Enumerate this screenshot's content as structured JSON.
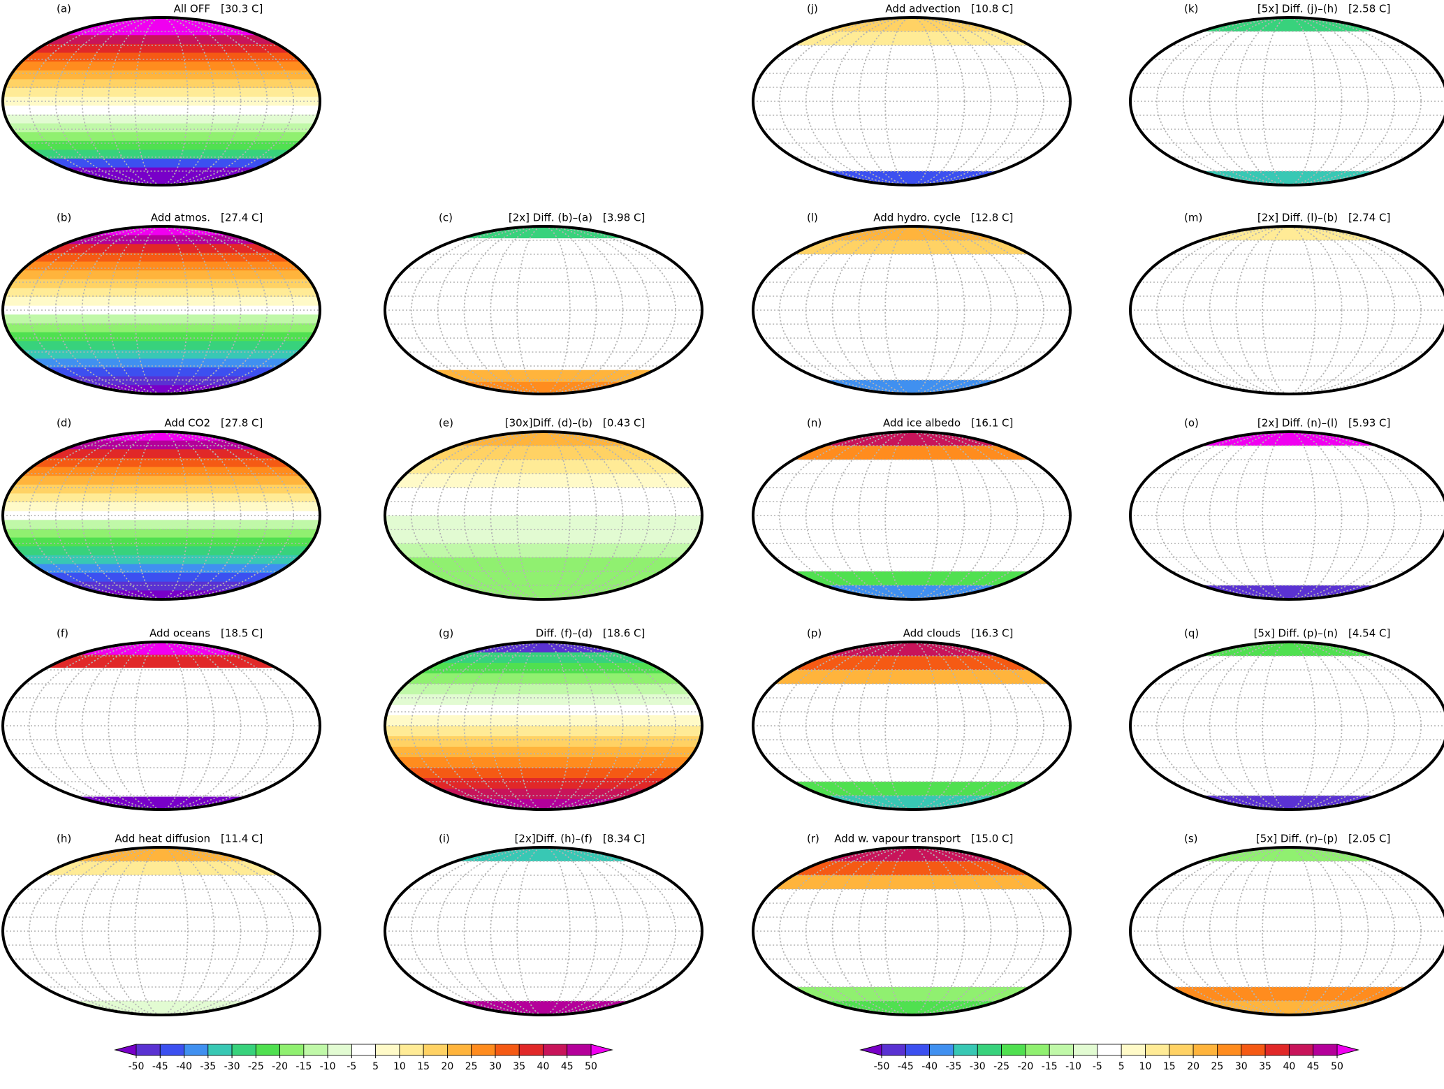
{
  "panels": [
    {
      "label": "(a)",
      "title": "All OFF",
      "mean": "[30.3 C]"
    },
    {
      "label": "(b)",
      "title": "Add atmos.",
      "mean": "[27.4 C]"
    },
    {
      "label": "(c)",
      "title": "[2x] Diff. (b)–(a)",
      "mean": "[3.98 C]"
    },
    {
      "label": "(d)",
      "title": "Add CO2",
      "mean": "[27.8 C]"
    },
    {
      "label": "(e)",
      "title": "[30x]Diff. (d)–(b)",
      "mean": "[0.43 C]"
    },
    {
      "label": "(f)",
      "title": "Add oceans",
      "mean": "[18.5 C]"
    },
    {
      "label": "(g)",
      "title": "Diff. (f)–(d)",
      "mean": "[18.6 C]"
    },
    {
      "label": "(h)",
      "title": "Add heat diffusion",
      "mean": "[11.4 C]"
    },
    {
      "label": "(i)",
      "title": "[2x]Diff. (h)–(f)",
      "mean": "[8.34 C]"
    },
    {
      "label": "(j)",
      "title": "Add advection",
      "mean": "[10.8 C]"
    },
    {
      "label": "(k)",
      "title": "[5x] Diff. (j)–(h)",
      "mean": "[2.58 C]"
    },
    {
      "label": "(l)",
      "title": "Add hydro. cycle",
      "mean": "[12.8 C]"
    },
    {
      "label": "(m)",
      "title": "[2x] Diff. (l)–(b)",
      "mean": "[2.74 C]"
    },
    {
      "label": "(n)",
      "title": "Add ice albedo",
      "mean": "[16.1 C]"
    },
    {
      "label": "(o)",
      "title": "[2x] Diff. (n)–(l)",
      "mean": "[5.93 C]"
    },
    {
      "label": "(p)",
      "title": "Add clouds",
      "mean": "[16.3 C]"
    },
    {
      "label": "(q)",
      "title": "[5x] Diff. (p)–(n)",
      "mean": "[4.54 C]"
    },
    {
      "label": "(r)",
      "title": "Add w. vapour transport",
      "mean": "[15.0 C]"
    },
    {
      "label": "(s)",
      "title": "[5x] Diff. (r)–(p)",
      "mean": "[2.05 C]"
    }
  ],
  "colorbar": {
    "ticks": [
      -50,
      -45,
      -40,
      -35,
      -30,
      -25,
      -20,
      -15,
      -10,
      -5,
      5,
      10,
      15,
      20,
      25,
      30,
      35,
      40,
      45,
      50
    ],
    "under_color": "#7800c8",
    "over_color": "#f000f0",
    "colors": [
      "#5a32d2",
      "#3c50f0",
      "#4090f0",
      "#38c8b4",
      "#38d27c",
      "#50e050",
      "#90f070",
      "#c0f8a8",
      "#e2fbd2",
      "#ffffff",
      "#fffac8",
      "#ffeb96",
      "#ffd264",
      "#ffb43c",
      "#ff8c1e",
      "#f55a14",
      "#e12828",
      "#c8145a",
      "#b4009a"
    ]
  }
}
